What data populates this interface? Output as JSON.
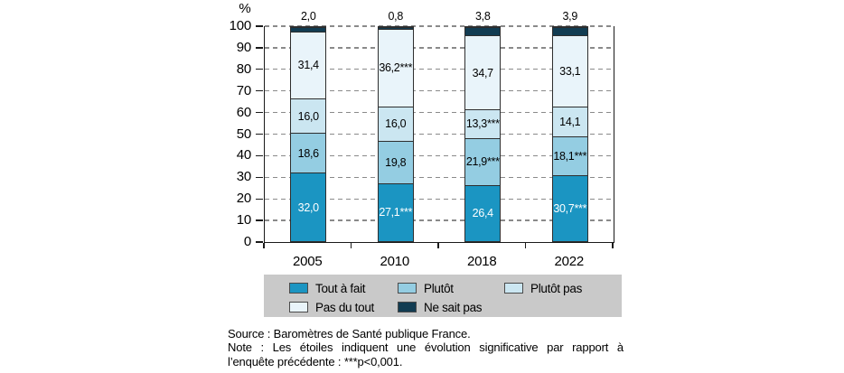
{
  "chart_data": {
    "type": "bar",
    "stacked": true,
    "title": "",
    "ylabel": "%",
    "xlabel": "",
    "categories": [
      "2005",
      "2010",
      "2018",
      "2022"
    ],
    "series": [
      {
        "name": "Tout à fait",
        "color": "#1b95c2",
        "values": [
          32.0,
          27.1,
          26.4,
          30.7
        ],
        "labels": [
          "32,0",
          "27,1***",
          "26,4",
          "30,7***"
        ],
        "label_color": "#ffffff",
        "label_position": "inside"
      },
      {
        "name": "Plutôt",
        "color": "#94cde2",
        "values": [
          18.6,
          19.8,
          21.9,
          18.1
        ],
        "labels": [
          "18,6",
          "19,8",
          "21,9***",
          "18,1***"
        ],
        "label_color": "#000000",
        "label_position": "inside"
      },
      {
        "name": "Plutôt pas",
        "color": "#cbe6f1",
        "values": [
          16.0,
          16.0,
          13.3,
          14.1
        ],
        "labels": [
          "16,0",
          "16,0",
          "13,3***",
          "14,1"
        ],
        "label_color": "#000000",
        "label_position": "inside"
      },
      {
        "name": "Pas du tout",
        "color": "#e9f4fa",
        "values": [
          31.4,
          36.2,
          34.7,
          33.1
        ],
        "labels": [
          "31,4",
          "36,2***",
          "34,7",
          "33,1"
        ],
        "label_color": "#000000",
        "label_position": "inside"
      },
      {
        "name": "Ne sait pas",
        "color": "#123c52",
        "values": [
          2.0,
          0.8,
          3.8,
          3.9
        ],
        "labels": [
          "2,0",
          "0,8",
          "3,8",
          "3,9"
        ],
        "label_color": "#000000",
        "label_position": "above"
      }
    ],
    "ylim": [
      0,
      100
    ],
    "yticks": [
      0,
      10,
      20,
      30,
      40,
      50,
      60,
      70,
      80,
      90,
      100
    ],
    "grid": "horizontal-dashed",
    "legend_position": "bottom",
    "legend_background": "#c9c9c9"
  },
  "footer": {
    "source": "Source : Baromètres de Santé publique France.",
    "note_line1": "Note : Les étoiles indiquent une évolution significative par rapport à",
    "note_line2": "l’enquête précédente : ***p<0,001."
  }
}
